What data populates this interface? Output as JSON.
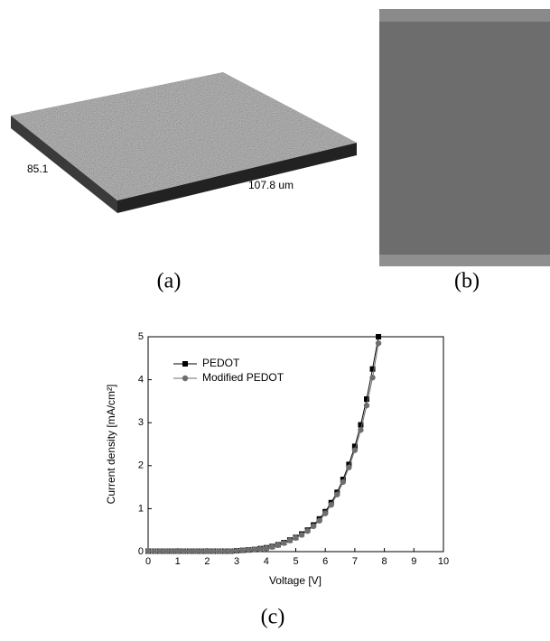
{
  "figure": {
    "panel_labels": [
      "(a)",
      "(b)",
      "(c)"
    ],
    "surface_labels": [
      "85.1",
      "107.8 um"
    ]
  },
  "chart_data": {
    "type": "line",
    "x_label": "Voltage [V]",
    "y_label": "Current density [mA/cm²]",
    "x": [
      0,
      0.2,
      0.4,
      0.6,
      0.8,
      1.0,
      1.2,
      1.4,
      1.6,
      1.8,
      2.0,
      2.2,
      2.4,
      2.6,
      2.8,
      3.0,
      3.2,
      3.4,
      3.6,
      3.8,
      4.0,
      4.2,
      4.4,
      4.6,
      4.8,
      5.0,
      5.2,
      5.4,
      5.6,
      5.8,
      6.0,
      6.2,
      6.4,
      6.6,
      6.8,
      7.0,
      7.2,
      7.4,
      7.6,
      7.8
    ],
    "series": [
      {
        "name": "PEDOT",
        "color": "#000000",
        "marker": "square",
        "values": [
          0.01,
          0.01,
          0.01,
          0.01,
          0.01,
          0.01,
          0.01,
          0.01,
          0.01,
          0.01,
          0.01,
          0.01,
          0.01,
          0.01,
          0.01,
          0.02,
          0.03,
          0.04,
          0.05,
          0.07,
          0.09,
          0.12,
          0.16,
          0.21,
          0.27,
          0.33,
          0.41,
          0.5,
          0.62,
          0.76,
          0.93,
          1.14,
          1.38,
          1.68,
          2.03,
          2.45,
          2.95,
          3.55,
          4.25,
          5.0
        ]
      },
      {
        "name": "Modified PEDOT",
        "color": "#6e6e6e",
        "marker": "circle",
        "values": [
          0.01,
          0.01,
          0.01,
          0.01,
          0.01,
          0.01,
          0.01,
          0.01,
          0.01,
          0.01,
          0.01,
          0.01,
          0.01,
          0.01,
          0.01,
          0.02,
          0.03,
          0.04,
          0.05,
          0.06,
          0.08,
          0.11,
          0.15,
          0.2,
          0.26,
          0.32,
          0.39,
          0.48,
          0.59,
          0.72,
          0.89,
          1.09,
          1.33,
          1.62,
          1.96,
          2.36,
          2.83,
          3.4,
          4.05,
          4.85
        ]
      }
    ],
    "xlim": [
      0,
      10
    ],
    "xticks": [
      0,
      1,
      2,
      3,
      4,
      5,
      6,
      7,
      8,
      9,
      10
    ],
    "ylim": [
      0,
      5
    ],
    "yticks": [
      0,
      1,
      2,
      3,
      4,
      5
    ],
    "legend": "upper left"
  }
}
